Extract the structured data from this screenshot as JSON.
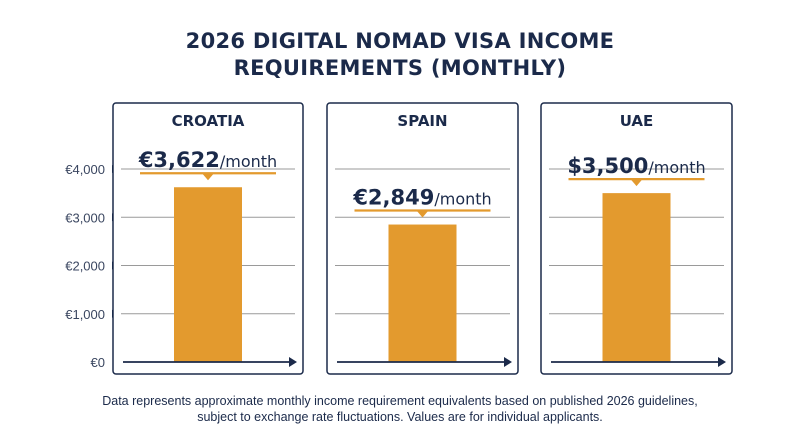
{
  "title_lines": [
    "2026 DIGITAL NOMAD VISA INCOME",
    "REQUIREMENTS (MONTHLY)"
  ],
  "footnote_lines": [
    "Data represents approximate monthly income requirement equivalents based on published 2026 guidelines,",
    "subject to exchange rate fluctuations. Values are for individual applicants."
  ],
  "colors": {
    "bar": "#e39a2e",
    "navy": "#1b2a4a",
    "grid": "#9a9a9a",
    "panel_border": "#1b2a4a"
  },
  "chart_data": {
    "type": "bar",
    "categories": [
      "CROATIA",
      "SPAIN",
      "UAE"
    ],
    "values": [
      3622,
      2849,
      3500
    ],
    "value_labels": [
      {
        "amount": "€3,622",
        "unit": "/month"
      },
      {
        "amount": "€2,849",
        "unit": "/month"
      },
      {
        "amount": "$3,500",
        "unit": "/month"
      }
    ],
    "ylim": [
      0,
      4000
    ],
    "y_ticks": [
      0,
      1000,
      2000,
      3000,
      4000
    ],
    "y_tick_labels": [
      "€0",
      "€1,000",
      "€2,000",
      "€3,000",
      "€4,000"
    ],
    "grid": true,
    "xlabel": "",
    "ylabel": ""
  }
}
